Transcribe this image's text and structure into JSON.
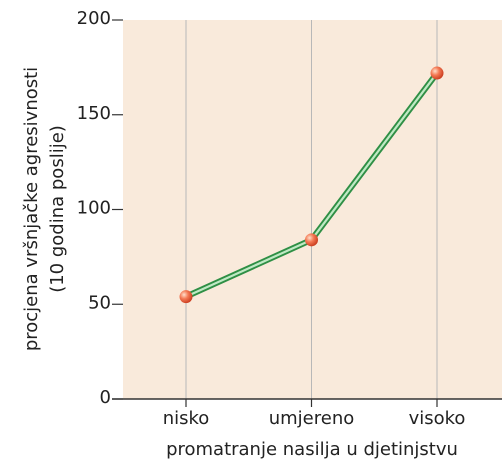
{
  "chart_data": {
    "type": "line",
    "categories": [
      "nisko",
      "umjereno",
      "visoko"
    ],
    "series": [
      {
        "color": "#2f8f45",
        "values": [
          54,
          84,
          172
        ]
      }
    ],
    "ylim": [
      0,
      200
    ],
    "yticks": [
      0,
      50,
      100,
      150,
      200
    ],
    "xlabel": "promatranje nasilja u djetinjstvu",
    "ylabel": [
      "procjena vršnjačke agresivnosti",
      "(10 godina poslije)"
    ],
    "grid": true,
    "background": "#f9eadb"
  }
}
